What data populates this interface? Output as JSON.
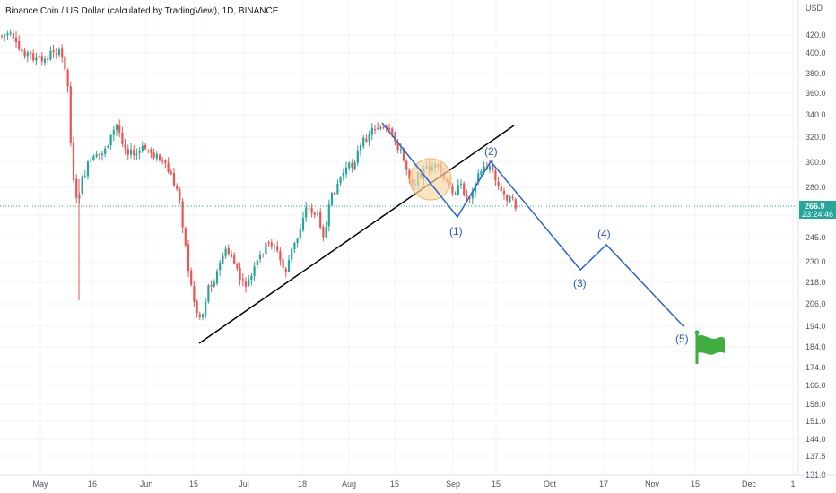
{
  "chart_data": {
    "type": "candlestick",
    "title": "Binance Coin / US Dollar (calculated by TradingView), 1D, BINANCE",
    "currency_label": "USD",
    "y_ticks": [
      "420.0",
      "400.0",
      "380.0",
      "360.0",
      "340.0",
      "320.0",
      "300.0",
      "280.0",
      "260.0",
      "245.0",
      "230.0",
      "218.0",
      "206.0",
      "194.0",
      "184.0",
      "174.0",
      "166.0",
      "158.0",
      "151.0",
      "144.0",
      "137.5",
      "131.0"
    ],
    "x_ticks": [
      "May",
      "16",
      "Jun",
      "15",
      "Jul",
      "18",
      "Aug",
      "15",
      "Sep",
      "15",
      "Oct",
      "17",
      "Nov",
      "15",
      "Dec",
      "1"
    ],
    "y_scale": "log",
    "last_price": "266.9",
    "countdown": "23:24:46",
    "wave_labels": [
      "(1)",
      "(2)",
      "(3)",
      "(4)",
      "(5)"
    ],
    "colors": {
      "up": "#26a69a",
      "down": "#ef5350",
      "wave_line": "#2b62d9",
      "trend_line": "#000000",
      "price_tag": "#26a69a",
      "flag": "#3fae3f",
      "circle_fill": "#f7d9a8",
      "circle_stroke": "#f0b562"
    },
    "icons": {
      "target": "green-flag-icon"
    }
  }
}
